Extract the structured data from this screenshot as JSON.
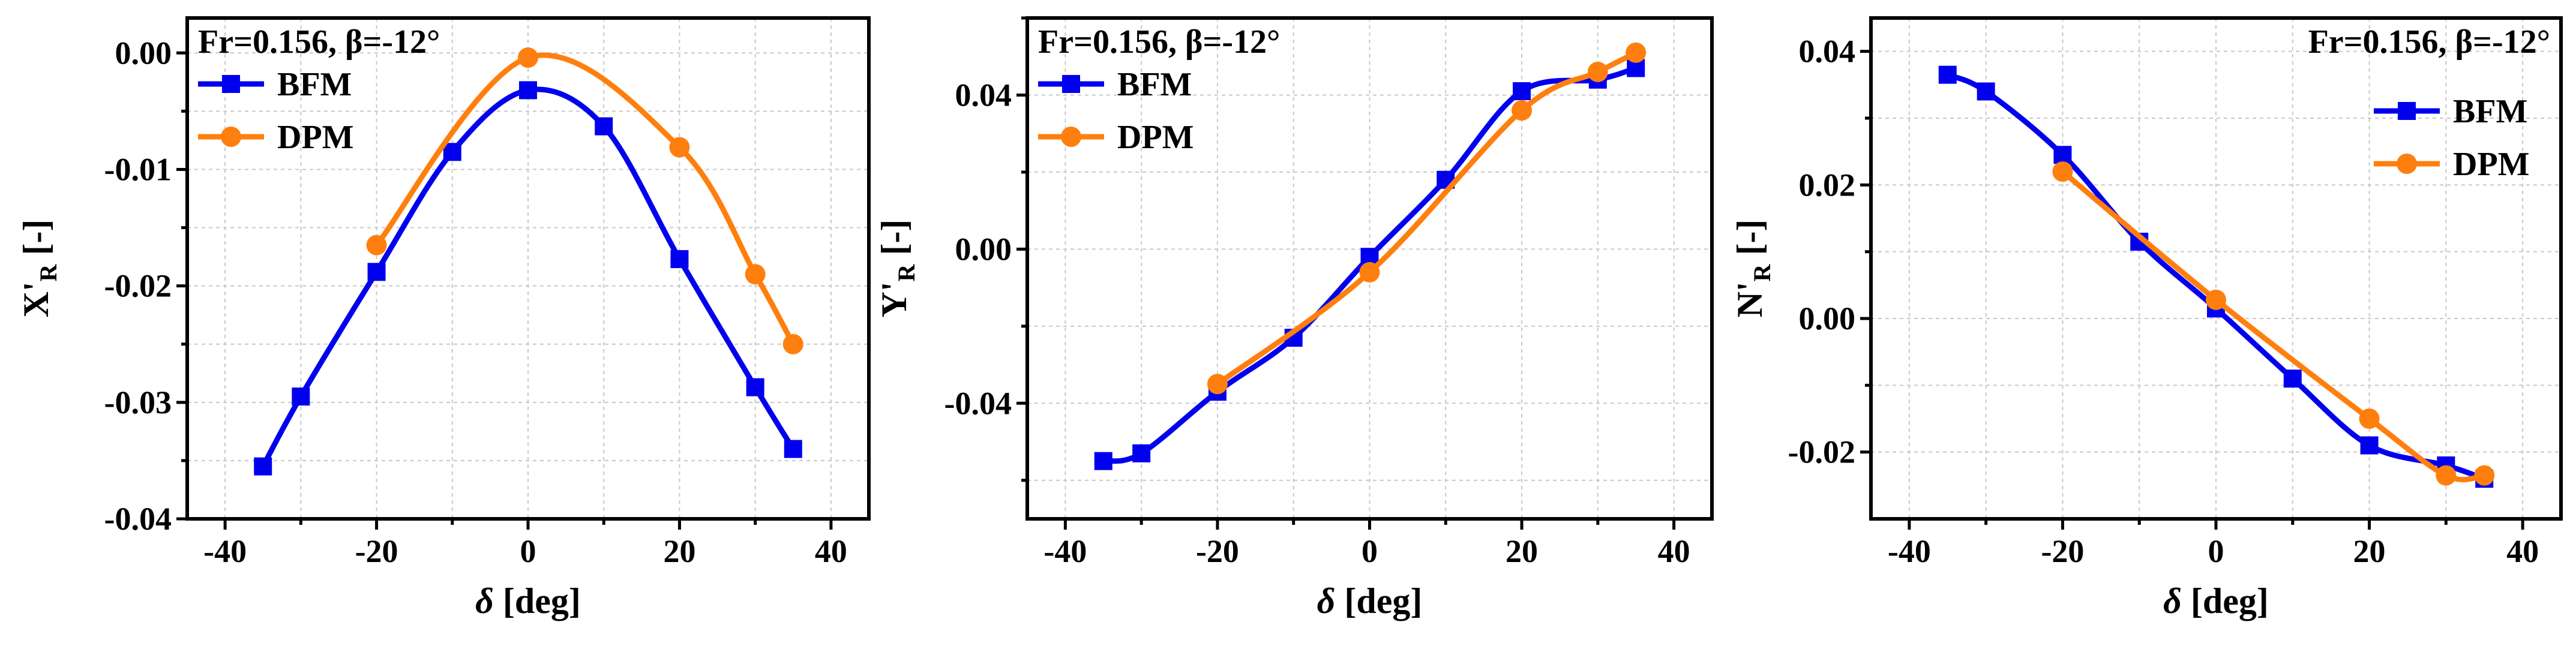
{
  "chart_data": [
    {
      "type": "line",
      "title": "",
      "annotation": "Fr=0.156, β=-12°",
      "annotation_position": "top-left",
      "legend_position": "top-left",
      "xlabel": "δ [deg]",
      "ylabel": "X'R [-]",
      "ylabel_main": "X'",
      "ylabel_sub": "R",
      "ylabel_unit": " [-]",
      "xlim": [
        -45,
        45
      ],
      "ylim": [
        -0.04,
        0.003
      ],
      "xticks": [
        -40,
        -20,
        0,
        20,
        40
      ],
      "xtick_labels": [
        "-40",
        "-20",
        "0",
        "20",
        "40"
      ],
      "yticks": [
        -0.04,
        -0.03,
        -0.02,
        -0.01,
        0.0
      ],
      "ytick_labels": [
        "-0.04",
        "-0.03",
        "-0.02",
        "-0.01",
        "0.00"
      ],
      "grid": true,
      "series": [
        {
          "name": "BFM",
          "color": "#0000ee",
          "marker": "square",
          "x": [
            -35,
            -30,
            -20,
            -10,
            0,
            10,
            20,
            30,
            35
          ],
          "y": [
            -0.0355,
            -0.0295,
            -0.0188,
            -0.0085,
            -0.0032,
            -0.0063,
            -0.0177,
            -0.0287,
            -0.034
          ]
        },
        {
          "name": "DPM",
          "color": "#ff7f0e",
          "marker": "circle",
          "x": [
            -20,
            0,
            20,
            30,
            35
          ],
          "y": [
            -0.0165,
            -0.0004,
            -0.0081,
            -0.019,
            -0.025
          ]
        }
      ]
    },
    {
      "type": "line",
      "title": "",
      "annotation": "Fr=0.156, β=-12°",
      "annotation_position": "top-left",
      "legend_position": "top-left",
      "xlabel": "δ [deg]",
      "ylabel": "Y'R [-]",
      "ylabel_main": "Y'",
      "ylabel_sub": "R",
      "ylabel_unit": " [-]",
      "xlim": [
        -45,
        45
      ],
      "ylim": [
        -0.07,
        0.06
      ],
      "xticks": [
        -40,
        -20,
        0,
        20,
        40
      ],
      "xtick_labels": [
        "-40",
        "-20",
        "0",
        "20",
        "40"
      ],
      "yticks": [
        -0.04,
        0.0,
        0.04
      ],
      "ytick_labels": [
        "-0.04",
        "0.00",
        "0.04"
      ],
      "grid": true,
      "series": [
        {
          "name": "BFM",
          "color": "#0000ee",
          "marker": "square",
          "x": [
            -35,
            -30,
            -20,
            -10,
            0,
            10,
            20,
            30,
            35
          ],
          "y": [
            -0.055,
            -0.053,
            -0.037,
            -0.023,
            -0.002,
            0.018,
            0.041,
            0.044,
            0.047
          ]
        },
        {
          "name": "DPM",
          "color": "#ff7f0e",
          "marker": "circle",
          "x": [
            -20,
            0,
            20,
            30,
            35
          ],
          "y": [
            -0.035,
            -0.006,
            0.036,
            0.046,
            0.051
          ]
        }
      ]
    },
    {
      "type": "line",
      "title": "",
      "annotation": "Fr=0.156, β=-12°",
      "annotation_position": "top-right",
      "legend_position": "top-right",
      "xlabel": "δ [deg]",
      "ylabel": "N'R [-]",
      "ylabel_main": "N'",
      "ylabel_sub": "R",
      "ylabel_unit": " [-]",
      "xlim": [
        -45,
        45
      ],
      "ylim": [
        -0.03,
        0.045
      ],
      "xticks": [
        -40,
        -20,
        0,
        20,
        40
      ],
      "xtick_labels": [
        "-40",
        "-20",
        "0",
        "20",
        "40"
      ],
      "yticks": [
        -0.02,
        0.0,
        0.02,
        0.04
      ],
      "ytick_labels": [
        "-0.02",
        "0.00",
        "0.02",
        "0.04"
      ],
      "grid": true,
      "series": [
        {
          "name": "BFM",
          "color": "#0000ee",
          "marker": "square",
          "x": [
            -35,
            -30,
            -20,
            -10,
            0,
            10,
            20,
            30,
            35
          ],
          "y": [
            0.0365,
            0.034,
            0.0245,
            0.0115,
            0.0015,
            -0.009,
            -0.019,
            -0.022,
            -0.024
          ]
        },
        {
          "name": "DPM",
          "color": "#ff7f0e",
          "marker": "circle",
          "x": [
            -20,
            0,
            20,
            30,
            35
          ],
          "y": [
            0.022,
            0.0028,
            -0.015,
            -0.0235,
            -0.0235
          ]
        }
      ]
    }
  ]
}
